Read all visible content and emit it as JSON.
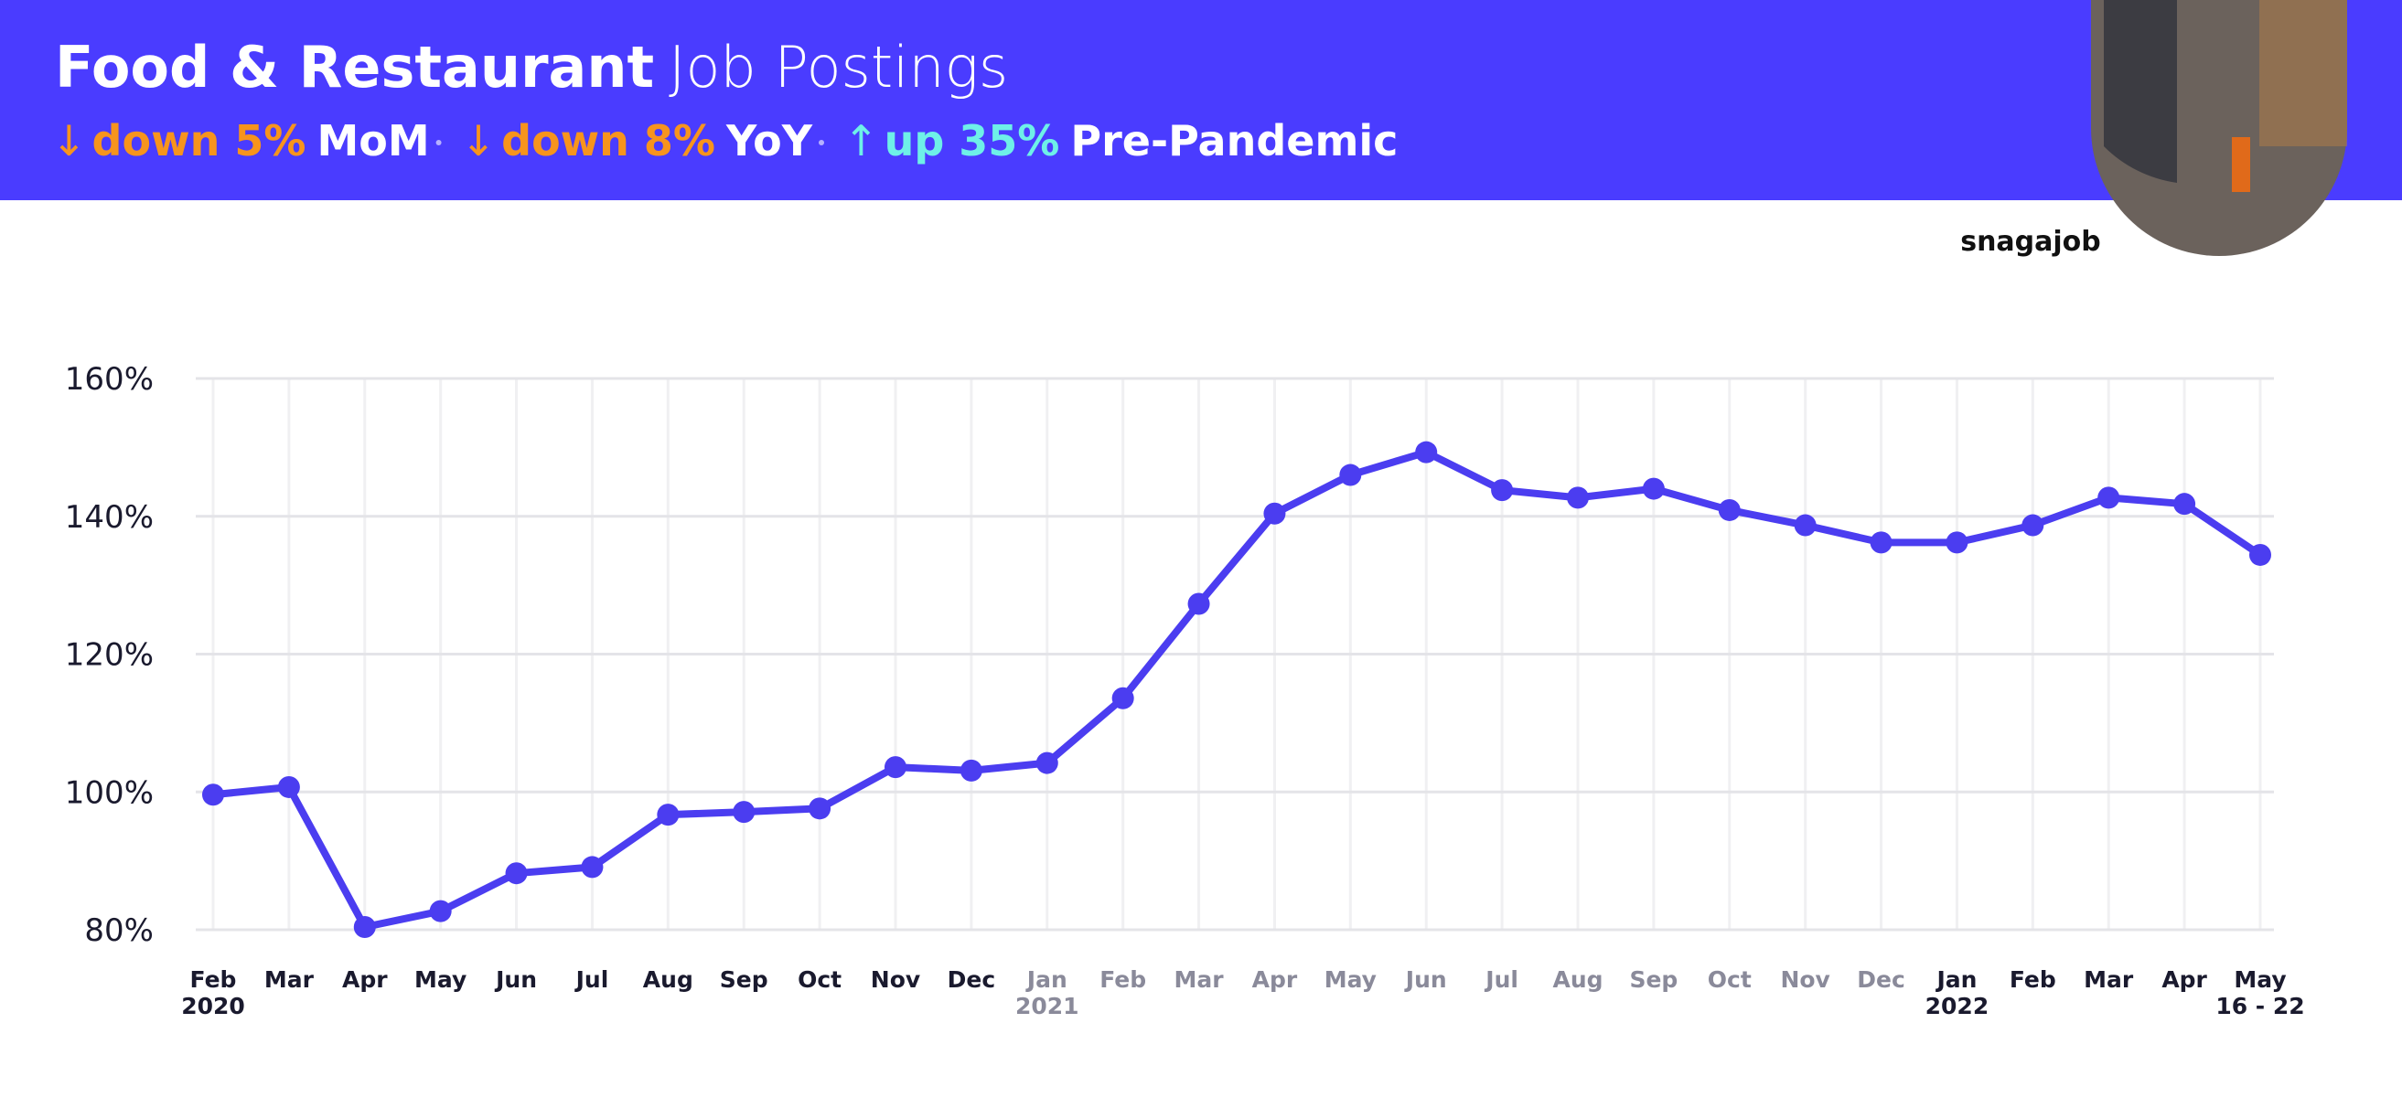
{
  "header": {
    "title_bold": "Food & Restaurant",
    "title_light": "Job Postings",
    "stats": [
      {
        "arrow": "↓",
        "change": "down 5%",
        "label": "MoM",
        "color": "#f7941d"
      },
      {
        "arrow": "↓",
        "change": "down 8%",
        "label": "YoY",
        "color": "#f7941d"
      },
      {
        "arrow": "↑",
        "change": "up 35%",
        "label": "Pre-Pandemic",
        "color": "#6ef0e8"
      }
    ],
    "logo": "snagajob"
  },
  "chart_data": {
    "type": "line",
    "categories": [
      "Feb",
      "Mar",
      "Apr",
      "May",
      "Jun",
      "Jul",
      "Aug",
      "Sep",
      "Oct",
      "Nov",
      "Dec",
      "Jan",
      "Feb",
      "Mar",
      "Apr",
      "May",
      "Jun",
      "Jul",
      "Aug",
      "Sep",
      "Oct",
      "Nov",
      "Dec",
      "Jan",
      "Feb",
      "Mar",
      "Apr",
      "May"
    ],
    "category_sublabels": [
      "2020",
      null,
      null,
      null,
      null,
      null,
      null,
      null,
      null,
      null,
      null,
      "2021",
      null,
      null,
      null,
      null,
      null,
      null,
      null,
      null,
      null,
      null,
      null,
      "2022",
      null,
      null,
      null,
      "16 - 22"
    ],
    "category_colors": [
      "#1a1a2e",
      "#1a1a2e",
      "#1a1a2e",
      "#1a1a2e",
      "#1a1a2e",
      "#1a1a2e",
      "#1a1a2e",
      "#1a1a2e",
      "#1a1a2e",
      "#1a1a2e",
      "#1a1a2e",
      "#8a8a9a",
      "#8a8a9a",
      "#8a8a9a",
      "#8a8a9a",
      "#8a8a9a",
      "#8a8a9a",
      "#8a8a9a",
      "#8a8a9a",
      "#8a8a9a",
      "#8a8a9a",
      "#8a8a9a",
      "#8a8a9a",
      "#1a1a2e",
      "#1a1a2e",
      "#1a1a2e",
      "#1a1a2e",
      "#1a1a2e"
    ],
    "values": [
      99.6,
      100.7,
      80.4,
      82.7,
      88.2,
      89.1,
      96.7,
      97.1,
      97.6,
      103.6,
      103.1,
      104.2,
      113.6,
      127.3,
      140.4,
      146,
      149.3,
      143.8,
      142.7,
      144,
      140.9,
      138.7,
      136.2,
      136.2,
      138.7,
      142.7,
      141.8,
      134.4
    ],
    "color": "#4b3df0",
    "ylim": [
      80,
      160
    ],
    "yticks": [
      {
        "value": 80,
        "label": "80%"
      },
      {
        "value": 100,
        "label": "100%"
      },
      {
        "value": 120,
        "label": "120%"
      },
      {
        "value": 140,
        "label": "140%"
      },
      {
        "value": 160,
        "label": "160%"
      }
    ],
    "grid": true
  }
}
